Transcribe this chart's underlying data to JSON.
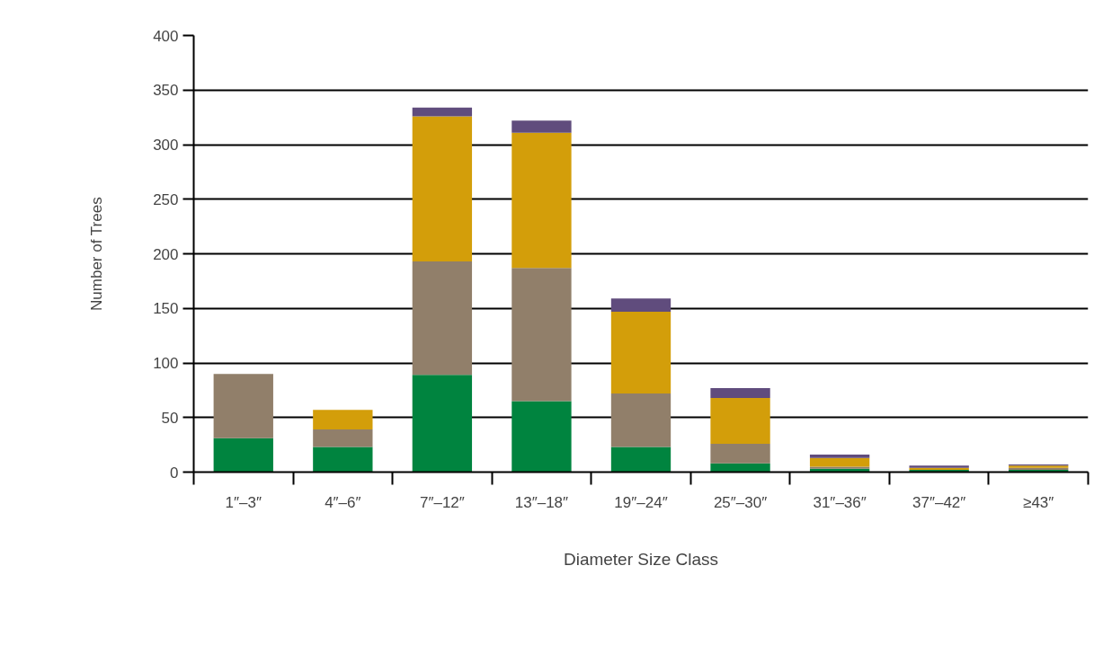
{
  "chart_data": {
    "type": "bar",
    "stacked": true,
    "xlabel": "Diameter Size Class",
    "ylabel": "Number of Trees",
    "categories": [
      "1″–3″",
      "4″–6″",
      "7″–12″",
      "13″–18″",
      "19″–24″",
      "25″–30″",
      "31″–36″",
      "37″–42″",
      "≥43″"
    ],
    "series": [
      {
        "color": "#00843f",
        "values": [
          31,
          23,
          89,
          65,
          23,
          8,
          3,
          2,
          2
        ]
      },
      {
        "color": "#917f6a",
        "values": [
          59,
          16,
          104,
          122,
          49,
          18,
          2,
          0,
          2
        ]
      },
      {
        "color": "#d39e0a",
        "values": [
          0,
          18,
          133,
          124,
          75,
          42,
          8,
          2,
          2
        ]
      },
      {
        "color": "#604c7d",
        "values": [
          0,
          0,
          8,
          11,
          12,
          9,
          3,
          2,
          1
        ]
      }
    ],
    "ylim": [
      0,
      400
    ],
    "yticks": [
      0,
      50,
      100,
      150,
      200,
      250,
      300,
      350,
      400
    ],
    "grid": "y"
  }
}
